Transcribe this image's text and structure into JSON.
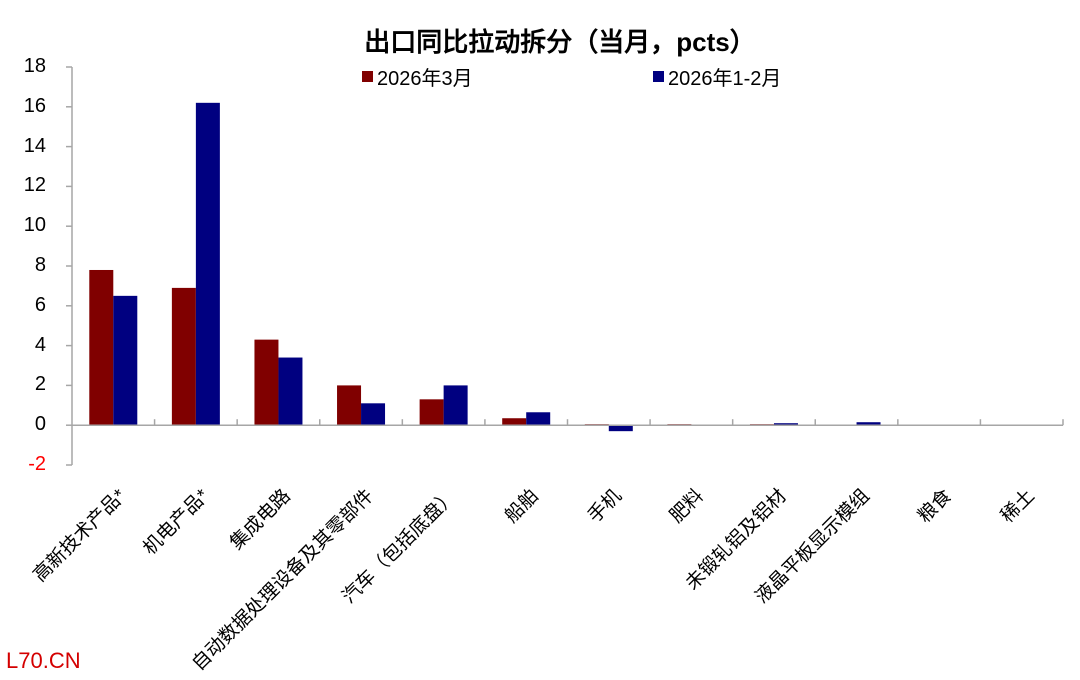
{
  "chart_data": {
    "type": "bar",
    "title": "出口同比拉动拆分（当月，pcts）",
    "xlabel": "",
    "ylabel": "",
    "ylim": [
      -2,
      18
    ],
    "yticks": [
      "18",
      "16",
      "14",
      "12",
      "10",
      "8",
      "6",
      "4",
      "2",
      "0",
      "-2"
    ],
    "grid": false,
    "legend_position": "top",
    "categories": [
      "高新技术产品*",
      "机电产品*",
      "集成电路",
      "自动数据处理设备及其零部件",
      "汽车（包括底盘）",
      "船舶",
      "手机",
      "肥料",
      "未锻轧铝及铝材",
      "液晶平板显示模组",
      "粮食",
      "稀土"
    ],
    "series": [
      {
        "name": "2026年3月",
        "color": "#800000",
        "values": [
          7.8,
          6.9,
          4.3,
          2.0,
          1.3,
          0.35,
          0.05,
          0.05,
          0.05,
          0.02,
          0.0,
          0.0
        ]
      },
      {
        "name": "2026年1-2月",
        "color": "#000080",
        "values": [
          6.5,
          16.2,
          3.4,
          1.1,
          2.0,
          0.65,
          -0.3,
          0.02,
          0.1,
          0.15,
          0.0,
          0.0
        ]
      }
    ]
  },
  "watermark": "L70.CN"
}
